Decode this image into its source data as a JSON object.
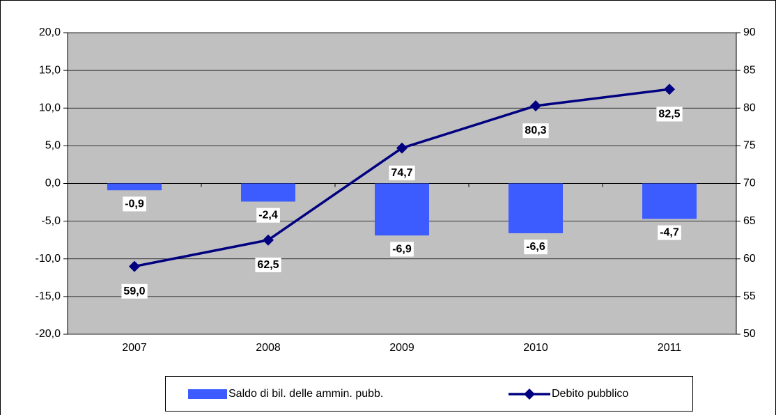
{
  "chart_data": {
    "type": "bar-line",
    "categories": [
      "2007",
      "2008",
      "2009",
      "2010",
      "2011"
    ],
    "series": [
      {
        "name": "Saldo di bil. delle ammin. pubb.",
        "type": "bar",
        "color": "#3d5cff",
        "values": [
          -0.9,
          -2.4,
          -6.9,
          -6.6,
          -4.7
        ],
        "value_labels": [
          "-0,9",
          "-2,4",
          "-6,9",
          "-6,6",
          "-4,7"
        ]
      },
      {
        "name": "Debito pubblico",
        "type": "line",
        "axis": "y2",
        "color": "#000080",
        "values": [
          59.0,
          62.5,
          74.7,
          80.3,
          82.5
        ],
        "value_labels": [
          "59,0",
          "62,5",
          "74,7",
          "80,3",
          "82,5"
        ]
      }
    ],
    "ylim": [
      -20,
      20
    ],
    "yticks": [
      {
        "value": -20,
        "label": "-20,0"
      },
      {
        "value": -15,
        "label": "-15,0"
      },
      {
        "value": -10,
        "label": "-10,0"
      },
      {
        "value": -5,
        "label": "-5,0"
      },
      {
        "value": 0,
        "label": "0,0"
      },
      {
        "value": 5,
        "label": "5,0"
      },
      {
        "value": 10,
        "label": "10,0"
      },
      {
        "value": 15,
        "label": "15,0"
      },
      {
        "value": 20,
        "label": "20,0"
      }
    ],
    "y2lim": [
      50,
      90
    ],
    "y2ticks": [
      50,
      55,
      60,
      65,
      70,
      75,
      80,
      85,
      90
    ],
    "grid": true,
    "legend": "bottom"
  }
}
